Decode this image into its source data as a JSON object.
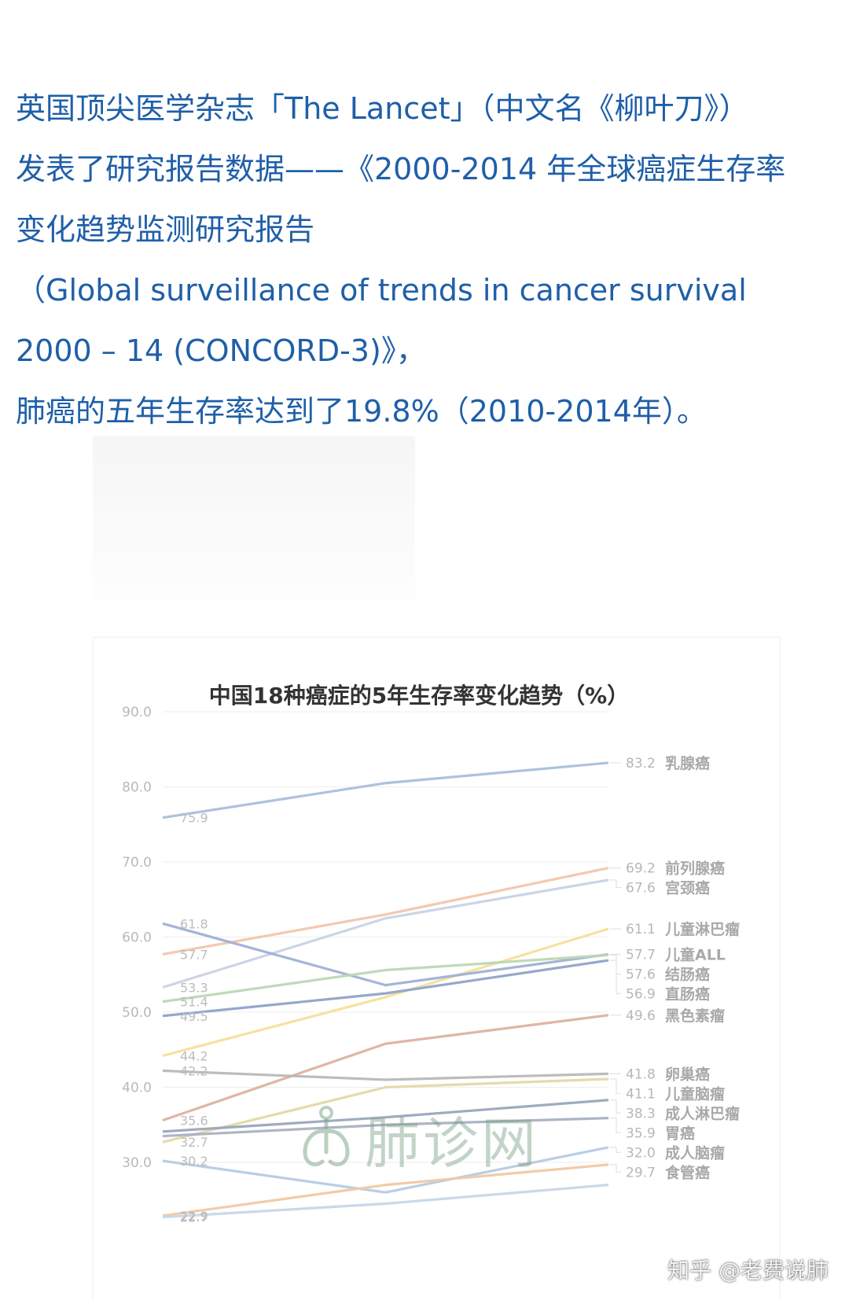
{
  "article": {
    "lines": [
      "英国顶尖医学杂志「The Lancet」（中文名《柳叶刀》）",
      "发表了研究报告数据——《2000-2014 年全球癌症生存率",
      "变化趋势监测研究报告",
      "（Global surveillance of trends in cancer survival",
      "2000 – 14 (CONCORD-3)》，",
      "肺癌的五年生存率达到了19.8%（2010-2014年）。"
    ]
  },
  "watermark_text": "肺诊网",
  "credit_text": "知乎 @老费说肺",
  "chart_data": {
    "type": "line",
    "title": "中国18种癌症的5年生存率变化趋势（%）",
    "xlabel": "",
    "ylabel": "",
    "ylim": [
      20,
      90
    ],
    "yticks": [
      "90.0",
      "80.0",
      "70.0",
      "60.0",
      "50.0",
      "40.0",
      "30.0"
    ],
    "x": [
      0,
      1,
      2
    ],
    "grid": true,
    "series": [
      {
        "name": "乳腺癌",
        "values": [
          75.9,
          80.5,
          83.2
        ],
        "start_label": "75.9",
        "end_label": "83.2",
        "color": "#a9bfdc"
      },
      {
        "name": "前列腺癌",
        "values": [
          57.7,
          63.0,
          69.2
        ],
        "start_label": "57.7",
        "end_label": "69.2",
        "color": "#f2c6ab"
      },
      {
        "name": "宫颈癌",
        "values": [
          53.3,
          62.5,
          67.6
        ],
        "start_label": "53.3",
        "end_label": "67.6",
        "color": "#c9d3e6"
      },
      {
        "name": "儿童淋巴瘤",
        "values": [
          44.2,
          52.0,
          61.1
        ],
        "start_label": "44.2",
        "end_label": "61.1",
        "color": "#f7df9c"
      },
      {
        "name": "儿童ALL",
        "values": [
          61.8,
          53.6,
          57.7
        ],
        "start_label": "61.8",
        "end_label": "57.7",
        "color": "#9fb0d6"
      },
      {
        "name": "结肠癌",
        "values": [
          51.4,
          55.6,
          57.6
        ],
        "start_label": "51.4",
        "end_label": "57.6",
        "color": "#bdd7b4"
      },
      {
        "name": "直肠癌",
        "values": [
          49.5,
          52.5,
          56.9
        ],
        "start_label": "49.5",
        "end_label": "56.9",
        "color": "#8fa3c9"
      },
      {
        "name": "黑色素瘤",
        "values": [
          35.6,
          45.8,
          49.6
        ],
        "start_label": "35.6",
        "end_label": "49.6",
        "color": "#deb1a0"
      },
      {
        "name": "卵巢癌",
        "values": [
          42.2,
          41.0,
          41.8
        ],
        "start_label": "42.2",
        "end_label": "41.8",
        "color": "#b8b8b8"
      },
      {
        "name": "儿童脑瘤",
        "values": [
          32.7,
          40.0,
          41.1
        ],
        "start_label": "32.7",
        "end_label": "41.1",
        "color": "#e2d9a6"
      },
      {
        "name": "成人淋巴瘤",
        "values": [
          34.1,
          36.0,
          38.3
        ],
        "start_label": "",
        "end_label": "38.3",
        "color": "#9aa7bd"
      },
      {
        "name": "胃癌",
        "values": [
          33.5,
          35.0,
          35.9
        ],
        "start_label": "",
        "end_label": "35.9",
        "color": "#a9b1c2"
      },
      {
        "name": "成人脑瘤",
        "values": [
          30.2,
          26.0,
          32.0
        ],
        "start_label": "30.2",
        "end_label": "32.0",
        "color": "#b4cbe3"
      },
      {
        "name": "食管癌",
        "values": [
          22.9,
          27.0,
          29.7
        ],
        "start_label": "22.9",
        "end_label": "29.7",
        "color": "#f1c8a4"
      },
      {
        "name": "",
        "values": [
          22.7,
          24.5,
          27.0
        ],
        "start_label": "22.7",
        "end_label": "",
        "color": "#c8d6e8"
      }
    ]
  }
}
